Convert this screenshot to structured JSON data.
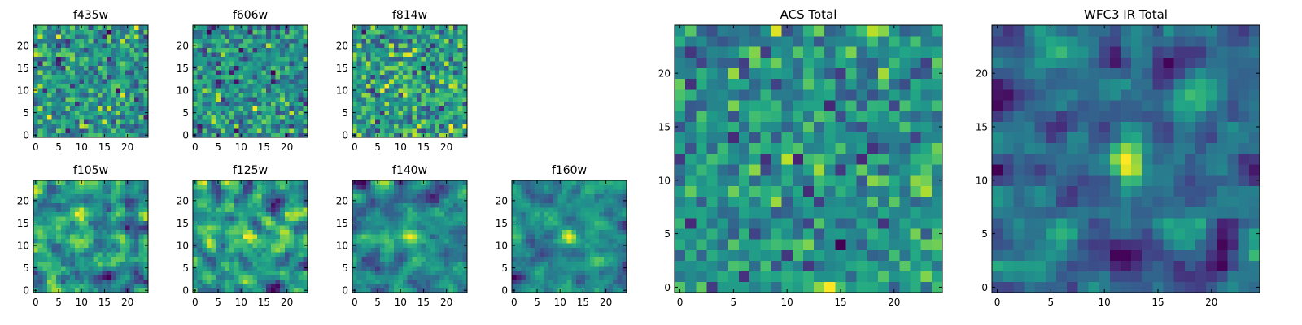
{
  "figure": {
    "background": "#ffffff",
    "colormap": "viridis",
    "grid": false
  },
  "chart_data": [
    {
      "type": "heatmap",
      "title": "f435w",
      "rows": 25,
      "cols": 25,
      "seed": 11,
      "noise": 1.0,
      "smooth": 0,
      "peak": 0.0,
      "xticks": [
        0,
        5,
        10,
        15,
        20
      ],
      "yticks": [
        0,
        5,
        10,
        15,
        20
      ],
      "xlim": [
        0,
        24
      ],
      "ylim": [
        0,
        24
      ]
    },
    {
      "type": "heatmap",
      "title": "f606w",
      "rows": 25,
      "cols": 25,
      "seed": 23,
      "noise": 1.0,
      "smooth": 0,
      "peak": 0.0,
      "xticks": [
        0,
        5,
        10,
        15,
        20
      ],
      "yticks": [
        0,
        5,
        10,
        15,
        20
      ],
      "xlim": [
        0,
        24
      ],
      "ylim": [
        0,
        24
      ]
    },
    {
      "type": "heatmap",
      "title": "f814w",
      "rows": 25,
      "cols": 25,
      "seed": 37,
      "noise": 1.0,
      "smooth": 0,
      "peak": 0.0,
      "xticks": [
        0,
        5,
        10,
        15,
        20
      ],
      "yticks": [
        0,
        5,
        10,
        15,
        20
      ],
      "xlim": [
        0,
        24
      ],
      "ylim": [
        0,
        24
      ]
    },
    {
      "type": "heatmap",
      "title": "f105w",
      "rows": 25,
      "cols": 25,
      "seed": 41,
      "noise": 1.0,
      "smooth": 1,
      "peak": 0.35,
      "xticks": [
        0,
        5,
        10,
        15,
        20
      ],
      "yticks": [
        0,
        5,
        10,
        15,
        20
      ],
      "xlim": [
        0,
        24
      ],
      "ylim": [
        0,
        24
      ]
    },
    {
      "type": "heatmap",
      "title": "f125w",
      "rows": 25,
      "cols": 25,
      "seed": 53,
      "noise": 1.0,
      "smooth": 1,
      "peak": 0.35,
      "xticks": [
        0,
        5,
        10,
        15,
        20
      ],
      "yticks": [
        0,
        5,
        10,
        15,
        20
      ],
      "xlim": [
        0,
        24
      ],
      "ylim": [
        0,
        24
      ]
    },
    {
      "type": "heatmap",
      "title": "f140w",
      "rows": 25,
      "cols": 25,
      "seed": 67,
      "noise": 1.0,
      "smooth": 1,
      "peak": 0.55,
      "xticks": [
        0,
        5,
        10,
        15,
        20
      ],
      "yticks": [
        0,
        5,
        10,
        15,
        20
      ],
      "xlim": [
        0,
        24
      ],
      "ylim": [
        0,
        24
      ]
    },
    {
      "type": "heatmap",
      "title": "f160w",
      "rows": 25,
      "cols": 25,
      "seed": 79,
      "noise": 1.0,
      "smooth": 1,
      "peak": 0.8,
      "xticks": [
        0,
        5,
        10,
        15,
        20
      ],
      "yticks": [
        0,
        5,
        10,
        15,
        20
      ],
      "xlim": [
        0,
        24
      ],
      "ylim": [
        0,
        24
      ]
    },
    {
      "type": "heatmap",
      "title": "ACS Total",
      "rows": 25,
      "cols": 25,
      "seed": 97,
      "noise": 1.0,
      "smooth": 0,
      "peak": 0.0,
      "xticks": [
        0,
        5,
        10,
        15,
        20
      ],
      "yticks": [
        0,
        5,
        10,
        15,
        20
      ],
      "xlim": [
        0,
        24
      ],
      "ylim": [
        0,
        24
      ]
    },
    {
      "type": "heatmap",
      "title": "WFC3 IR Total",
      "rows": 25,
      "cols": 25,
      "seed": 103,
      "noise": 1.0,
      "smooth": 1,
      "peak": 0.9,
      "xticks": [
        0,
        5,
        10,
        15,
        20
      ],
      "yticks": [
        0,
        5,
        10,
        15,
        20
      ],
      "xlim": [
        0,
        24
      ],
      "ylim": [
        0,
        24
      ]
    }
  ]
}
